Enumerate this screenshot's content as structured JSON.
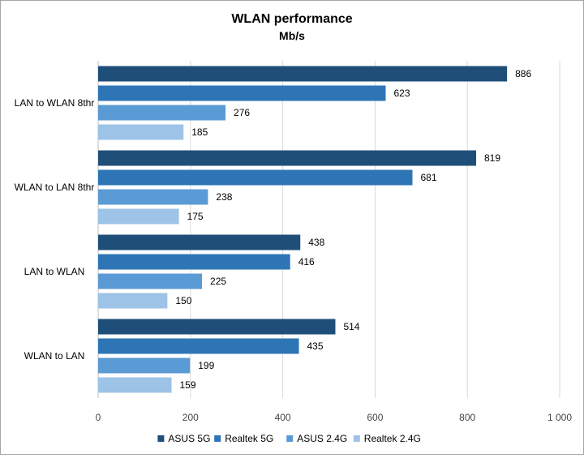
{
  "chart_data": {
    "type": "bar",
    "orientation": "horizontal",
    "title": "WLAN performance",
    "subtitle": "Mb/s",
    "categories": [
      "LAN to WLAN 8thr",
      "WLAN to LAN 8thr",
      "LAN to WLAN",
      "WLAN to LAN"
    ],
    "series": [
      {
        "name": "ASUS 5G",
        "color": "#1f4e79",
        "values": [
          886,
          819,
          438,
          514
        ]
      },
      {
        "name": "Realtek 5G",
        "color": "#2e75b6",
        "values": [
          623,
          681,
          416,
          435
        ]
      },
      {
        "name": "ASUS 2.4G",
        "color": "#5b9bd5",
        "values": [
          276,
          238,
          225,
          199
        ]
      },
      {
        "name": "Realtek 2.4G",
        "color": "#9dc3e6",
        "values": [
          185,
          175,
          150,
          159
        ]
      }
    ],
    "xlim": [
      0,
      1000
    ],
    "xticks": [
      0,
      200,
      400,
      600,
      800,
      1000
    ],
    "xtick_labels": [
      "0",
      "200",
      "400",
      "600",
      "800",
      "1 000"
    ],
    "grid": true,
    "legend": "bottom"
  }
}
